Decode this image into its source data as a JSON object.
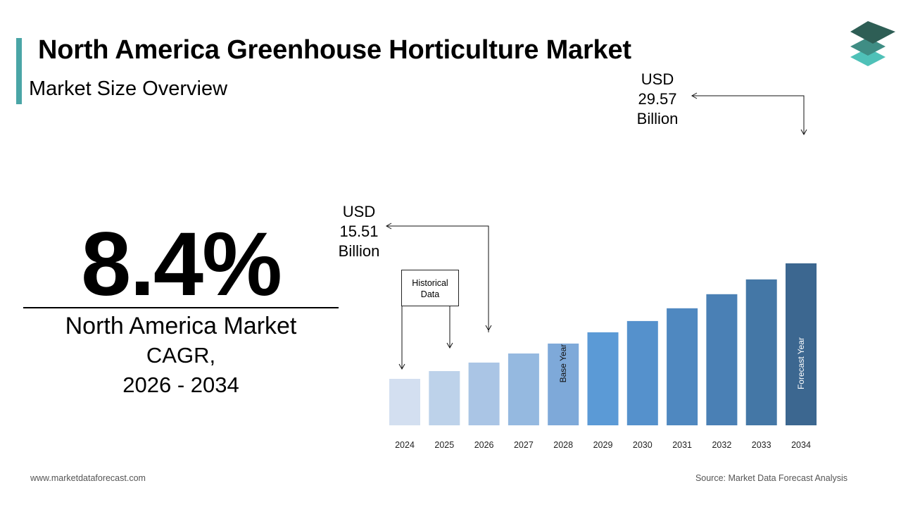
{
  "header": {
    "title": "North America Greenhouse Horticulture Market",
    "subtitle": "Market Size Overview",
    "accent_color": "#4aa5a6"
  },
  "logo": {
    "icon": "stacked-layers-icon",
    "colors": [
      "#2e5e55",
      "#3f8d84",
      "#4fc1b8"
    ]
  },
  "cagr": {
    "value": "8.4%",
    "label_line1": "North America Market",
    "label_line2": "CAGR,",
    "label_line3": "2026 - 2034"
  },
  "callouts": {
    "start": {
      "line1": "USD",
      "line2": "15.51",
      "line3": "Billion"
    },
    "end": {
      "line1": "USD",
      "line2": "29.57",
      "line3": "Billion"
    },
    "historical_line1": "Historical",
    "historical_line2": "Data"
  },
  "chart_data": {
    "type": "bar",
    "categories": [
      "2024",
      "2025",
      "2026",
      "2027",
      "2028",
      "2029",
      "2030",
      "2031",
      "2032",
      "2033",
      "2034"
    ],
    "values": [
      13.2,
      14.3,
      15.51,
      16.8,
      18.2,
      19.8,
      21.4,
      23.2,
      25.2,
      27.3,
      29.57
    ],
    "colors": [
      "#d3dff0",
      "#bdd2ea",
      "#aac5e5",
      "#95b9e0",
      "#7ea9d9",
      "#5b9ad6",
      "#5591cc",
      "#4f88c0",
      "#4a80b5",
      "#4477a6",
      "#3c6790"
    ],
    "unit": "USD Billion",
    "bar_annotations": {
      "2028": "Base Year",
      "2034": "Forecast Year"
    },
    "title": "",
    "xlabel": "",
    "ylabel": "",
    "grid": false,
    "legend": "none"
  },
  "footer": {
    "website": "www.marketdataforecast.com",
    "source": "Source: Market Data Forecast Analysis"
  }
}
